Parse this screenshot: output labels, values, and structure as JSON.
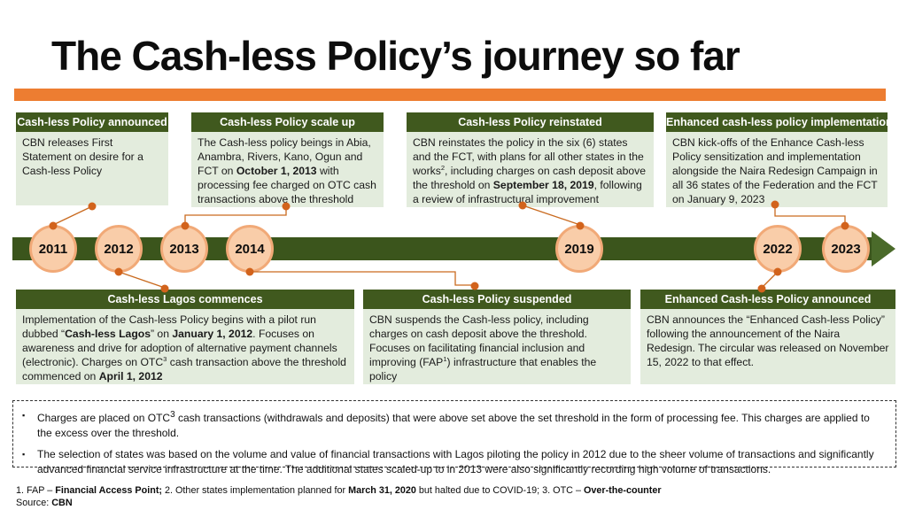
{
  "title": "The Cash-less Policy’s journey so far",
  "colors": {
    "accent_orange": "#ED7D31",
    "header_green": "#40591E",
    "body_green": "#E3ECDD",
    "timeline_green": "#3B551C",
    "arrow_green": "#4A6A2A",
    "circle_fill": "#F9CDA9",
    "circle_border": "#F1A977",
    "connector_orange": "#C96A1F",
    "dot_orange": "#D2631C"
  },
  "timeline": {
    "years": [
      "2011",
      "2012",
      "2013",
      "2014",
      "2019",
      "2022",
      "2023"
    ]
  },
  "top_boxes": [
    {
      "header": "Cash-less Policy announced",
      "body_runs": [
        {
          "t": "CBN releases First Statement on desire for a Cash-less Policy"
        }
      ]
    },
    {
      "header": "Cash-less Policy scale up",
      "body_runs": [
        {
          "t": "The Cash-less policy beings in Abia, Anambra, Rivers, Kano, Ogun and FCT on "
        },
        {
          "t": "October 1, 2013",
          "b": true
        },
        {
          "t": " with processing fee charged on OTC cash transactions above the threshold"
        }
      ]
    },
    {
      "header": "Cash-less Policy reinstated",
      "body_runs": [
        {
          "t": "CBN reinstates the policy in the six (6) states and the FCT, with plans for all other states in the works"
        },
        {
          "t": "2",
          "sup": true
        },
        {
          "t": ", including charges on cash deposit above the threshold on "
        },
        {
          "t": "September 18, 2019",
          "b": true
        },
        {
          "t": ", following a review of infrastructural improvement"
        }
      ]
    },
    {
      "header": "Enhanced cash-less policy implementation",
      "body_runs": [
        {
          "t": "CBN kick-offs of the Enhance Cash-less Policy sensitization and implementation alongside the Naira Redesign Campaign in all 36 states of the Federation and the FCT on January 9, 2023"
        }
      ]
    }
  ],
  "bottom_boxes": [
    {
      "header": "Cash-less Lagos commences",
      "body_runs": [
        {
          "t": "Implementation of the Cash-less Policy begins with a pilot run dubbed “"
        },
        {
          "t": "Cash-less Lagos",
          "b": true
        },
        {
          "t": "” on "
        },
        {
          "t": "January 1, 2012",
          "b": true
        },
        {
          "t": ". Focuses on awareness and drive for adoption of alternative payment channels (electronic). Charges on OTC"
        },
        {
          "t": "3",
          "sup": true
        },
        {
          "t": " cash transaction above the threshold commenced on "
        },
        {
          "t": "April 1, 2012",
          "b": true
        }
      ]
    },
    {
      "header": "Cash-less Policy suspended",
      "body_runs": [
        {
          "t": "CBN suspends the Cash-less policy, including charges on cash deposit above the threshold. Focuses on facilitating financial inclusion and improving (FAP"
        },
        {
          "t": "1",
          "sup": true
        },
        {
          "t": ") infrastructure that enables the policy"
        }
      ]
    },
    {
      "header": "Enhanced Cash-less Policy announced",
      "body_runs": [
        {
          "t": "CBN announces the “Enhanced Cash-less Policy” following the announcement of the Naira Redesign. The circular was released on November 15, 2022 to that effect."
        }
      ]
    }
  ],
  "notes": {
    "items": [
      {
        "runs": [
          {
            "t": "Charges are placed on OTC"
          },
          {
            "t": "3",
            "sup": true
          },
          {
            "t": " cash transactions (withdrawals and deposits) that were above set above the set threshold in the form of processing fee. This charges are applied to the excess over the threshold."
          }
        ]
      },
      {
        "runs": [
          {
            "t": "The selection of states was based on the volume and value of financial transactions with Lagos piloting the policy in 2012 due to the sheer volume of transactions and significantly advanced financial service infrastructure at the time. The additional states scaled-up to in 2013 were also significantly recording high volume of transactions."
          }
        ]
      }
    ]
  },
  "footer": {
    "footnotes_runs": [
      {
        "t": "1. FAP – "
      },
      {
        "t": "Financial Access Point;",
        "b": true
      },
      {
        "t": " 2. Other states implementation planned for "
      },
      {
        "t": "March 31, 2020",
        "b": true
      },
      {
        "t": " but halted due to COVID-19; 3. OTC – "
      },
      {
        "t": "Over-the-counter",
        "b": true
      }
    ],
    "source_runs": [
      {
        "t": "Source: "
      },
      {
        "t": "CBN",
        "b": true
      }
    ]
  }
}
